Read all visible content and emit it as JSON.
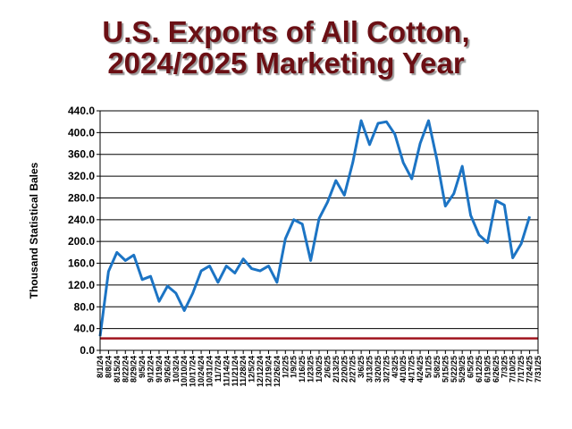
{
  "chart_data": {
    "type": "line",
    "title_line1": "U.S. Exports of All Cotton,",
    "title_line2": "2024/2025 Marketing Year",
    "xlabel": "",
    "ylabel": "Thousand  Statistical Bales",
    "ylim": [
      0,
      440
    ],
    "y_ticks": [
      "0.0",
      "40.0",
      "80.0",
      "120.0",
      "160.0",
      "200.0",
      "240.0",
      "280.0",
      "320.0",
      "360.0",
      "400.0",
      "440.0"
    ],
    "grid": true,
    "categories": [
      "8/1/24",
      "8/8/24",
      "8/15/24",
      "8/22/24",
      "8/29/24",
      "9/5/24",
      "9/12/24",
      "9/19/24",
      "9/26/24",
      "10/3/24",
      "10/10/24",
      "10/17/24",
      "10/24/24",
      "10/31/24",
      "11/7/24",
      "11/14/24",
      "11/21/24",
      "11/28/24",
      "12/5/24",
      "12/12/24",
      "12/19/24",
      "12/26/24",
      "1/2/25",
      "1/9/25",
      "1/16/25",
      "1/23/25",
      "1/30/25",
      "2/6/25",
      "2/13/25",
      "2/20/25",
      "2/27/25",
      "3/6/25",
      "3/13/25",
      "3/20/25",
      "3/27/25",
      "4/3/25",
      "4/10/25",
      "4/17/25",
      "4/24/25",
      "5/1/25",
      "5/8/25",
      "5/15/25",
      "5/22/25",
      "5/29/25",
      "6/5/25",
      "6/12/25",
      "6/19/25",
      "6/26/25",
      "7/3/25",
      "7/10/25",
      "7/17/25",
      "7/24/25",
      "7/31/25"
    ],
    "series": [
      {
        "values": [
          26,
          145,
          180,
          165,
          175,
          130,
          136,
          90,
          118,
          105,
          73,
          105,
          146,
          155,
          125,
          155,
          142,
          168,
          150,
          146,
          155,
          125,
          205,
          240,
          232,
          165,
          242,
          272,
          312,
          285,
          345,
          422,
          378,
          417,
          420,
          397,
          345,
          315,
          380,
          422,
          350,
          265,
          288,
          338,
          248,
          212,
          198,
          275,
          267,
          170,
          196,
          246,
          null
        ],
        "color": "#1c74c4"
      },
      {
        "values": [
          22,
          22,
          22,
          22,
          22,
          22,
          22,
          22,
          22,
          22,
          22,
          22,
          22,
          22,
          22,
          22,
          22,
          22,
          22,
          22,
          22,
          22,
          22,
          22,
          22,
          22,
          22,
          22,
          22,
          22,
          22,
          22,
          22,
          22,
          22,
          22,
          22,
          22,
          22,
          22,
          22,
          22,
          22,
          22,
          22,
          22,
          22,
          22,
          22,
          22,
          22,
          22,
          22
        ],
        "color": "#a0141e"
      }
    ]
  }
}
